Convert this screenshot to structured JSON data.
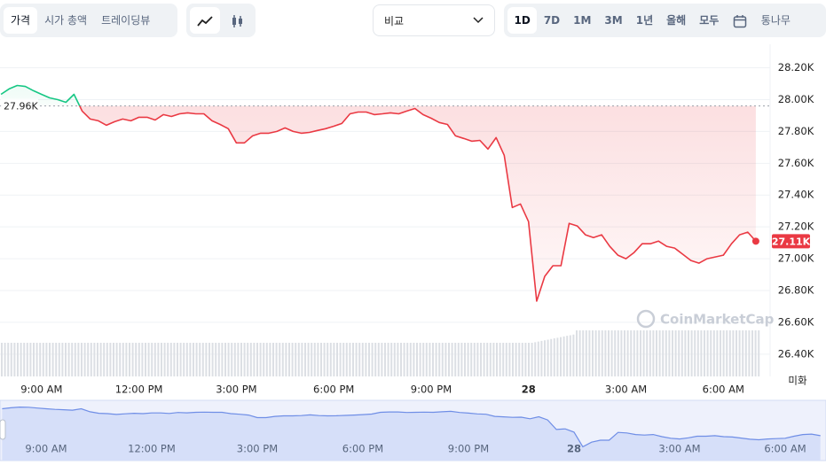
{
  "toolbar": {
    "tabs": [
      "가격",
      "시가 총액",
      "트레이딩뷰"
    ],
    "selected_tab": "가격",
    "compare": "비교",
    "ranges": [
      "1D",
      "7D",
      "1M",
      "3M",
      "1년",
      "올해",
      "모두"
    ],
    "selected_range": "1D",
    "log": "통나무"
  },
  "chart_data": {
    "type": "line",
    "watermark": "CoinMarketCap",
    "y_unit_label": "미화",
    "x": [
      7.75,
      8,
      8.25,
      8.5,
      8.75,
      9,
      9.25,
      9.5,
      9.75,
      10,
      10.25,
      10.5,
      10.75,
      11,
      11.25,
      11.5,
      11.75,
      12,
      12.25,
      12.5,
      12.75,
      13,
      13.25,
      13.5,
      13.75,
      14,
      14.25,
      14.5,
      14.75,
      15,
      15.25,
      15.5,
      15.75,
      16,
      16.25,
      16.5,
      16.75,
      17,
      17.25,
      17.5,
      17.75,
      18,
      18.25,
      18.5,
      18.75,
      19,
      19.25,
      19.5,
      19.75,
      20,
      20.25,
      20.5,
      20.75,
      21,
      21.25,
      21.5,
      21.75,
      22,
      22.25,
      22.5,
      22.75,
      23,
      23.25,
      23.5,
      23.75,
      24,
      24.25,
      24.5,
      24.75,
      25,
      25.25,
      25.5,
      25.75,
      26,
      26.25,
      26.5,
      26.75,
      27,
      27.25,
      27.5,
      27.75,
      28,
      28.25,
      28.5,
      28.75,
      29,
      29.25,
      29.5,
      29.75,
      30,
      30.25,
      30.5,
      30.75,
      31
    ],
    "series": [
      {
        "color_up": "#16c784",
        "color_down": "#ea3943",
        "values": [
          28033,
          28067,
          28089,
          28083,
          28056,
          28033,
          28011,
          28000,
          27983,
          28033,
          27928,
          27878,
          27867,
          27839,
          27861,
          27878,
          27867,
          27889,
          27889,
          27872,
          27906,
          27894,
          27911,
          27917,
          27911,
          27911,
          27867,
          27844,
          27817,
          27728,
          27728,
          27772,
          27789,
          27789,
          27800,
          27822,
          27800,
          27789,
          27794,
          27806,
          27817,
          27833,
          27850,
          27911,
          27922,
          27922,
          27906,
          27911,
          27917,
          27911,
          27928,
          27944,
          27906,
          27883,
          27856,
          27844,
          27772,
          27756,
          27739,
          27744,
          27689,
          27761,
          27650,
          27322,
          27344,
          27233,
          26733,
          26889,
          26956,
          26956,
          27222,
          27206,
          27150,
          27133,
          27150,
          27078,
          27022,
          27000,
          27039,
          27094,
          27094,
          27111,
          27078,
          27067,
          27028,
          26989,
          26972,
          27000,
          27011,
          27022,
          27094,
          27150,
          27167,
          27110
        ]
      }
    ],
    "baseline": {
      "value": 27960,
      "label": "27.96K"
    },
    "current": {
      "value": 27110,
      "label": "27.11K"
    },
    "xlim": [
      7.72,
      31.44
    ],
    "ylim": [
      26260,
      28320
    ],
    "xticks": [
      {
        "value": 9,
        "label": "9:00 AM"
      },
      {
        "value": 12,
        "label": "12:00 PM"
      },
      {
        "value": 15,
        "label": "3:00 PM"
      },
      {
        "value": 18,
        "label": "6:00 PM"
      },
      {
        "value": 21,
        "label": "9:00 PM"
      },
      {
        "value": 24,
        "label": "28"
      },
      {
        "value": 27,
        "label": "3:00 AM"
      },
      {
        "value": 30,
        "label": "6:00 AM"
      }
    ],
    "yticks": [
      {
        "value": 26400,
        "label": "26.40K"
      },
      {
        "value": 26600,
        "label": "26.60K"
      },
      {
        "value": 26800,
        "label": "26.80K"
      },
      {
        "value": 27000,
        "label": "27.00K"
      },
      {
        "value": 27200,
        "label": "27.20K"
      },
      {
        "value": 27400,
        "label": "27.40K"
      },
      {
        "value": 27600,
        "label": "27.60K"
      },
      {
        "value": 27800,
        "label": "27.80K"
      },
      {
        "value": 28000,
        "label": "28.00K"
      },
      {
        "value": 28200,
        "label": "28.20K"
      }
    ],
    "grid": true,
    "nav_xlim": [
      7.69,
      31.16
    ],
    "nav_xticks": [
      {
        "value": 9,
        "label": "9:00 AM"
      },
      {
        "value": 12,
        "label": "12:00 PM"
      },
      {
        "value": 15,
        "label": "3:00 PM"
      },
      {
        "value": 18,
        "label": "6:00 PM"
      },
      {
        "value": 21,
        "label": "9:00 PM"
      },
      {
        "value": 24,
        "label": "28"
      },
      {
        "value": 27,
        "label": "3:00 AM"
      },
      {
        "value": 30,
        "label": "6:00 AM"
      }
    ]
  }
}
